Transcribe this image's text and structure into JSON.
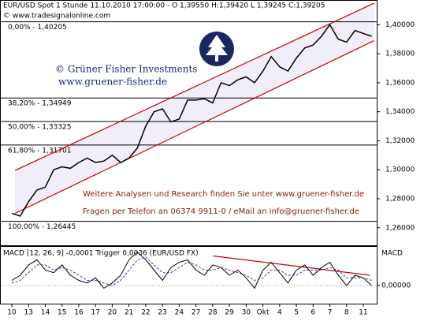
{
  "chart_data": [
    {
      "type": "line",
      "title": "EUR/USD Spot 1 Stunde  11.10.2010 17:00:00 - O 1,39550 H:1,39420 L 1,39245 C:1,39205",
      "subtitle": "© www.tradesignalonline.com",
      "annotations": [
        "© Grüner Fisher Investments",
        "www.gruener-fisher.de",
        "Weitere Analysen und Research finden Sie unter www.gruener-fisher.de",
        "Fragen per Telefon an 06374 9911-0 / eMail an info@gruener-fisher.de"
      ],
      "x": [
        0,
        0.5,
        1,
        1.5,
        2,
        2.5,
        3,
        3.5,
        4,
        4.5,
        5,
        5.5,
        6,
        6.5,
        7,
        7.5,
        8,
        8.5,
        9,
        9.5,
        10,
        10.5,
        11,
        11.5,
        12,
        12.5,
        13,
        13.5,
        14,
        14.5,
        15,
        15.5,
        16,
        16.5,
        17,
        17.5,
        18,
        18.5,
        19,
        19.5,
        20,
        20.5,
        21,
        21.5
      ],
      "values": [
        1.27,
        1.268,
        1.278,
        1.286,
        1.288,
        1.3,
        1.302,
        1.301,
        1.305,
        1.308,
        1.305,
        1.306,
        1.31,
        1.305,
        1.308,
        1.315,
        1.33,
        1.34,
        1.342,
        1.333,
        1.335,
        1.348,
        1.348,
        1.349,
        1.346,
        1.36,
        1.358,
        1.362,
        1.364,
        1.36,
        1.368,
        1.378,
        1.371,
        1.368,
        1.377,
        1.384,
        1.386,
        1.392,
        1.4,
        1.39,
        1.388,
        1.396,
        1.394,
        1.392
      ],
      "color": "#000000",
      "xlim": [
        -0.66,
        21.8
      ],
      "xticks": [
        {
          "value": 0,
          "label": "10"
        },
        {
          "value": 1,
          "label": "13"
        },
        {
          "value": 2,
          "label": "14"
        },
        {
          "value": 3,
          "label": "15"
        },
        {
          "value": 4,
          "label": "16"
        },
        {
          "value": 5,
          "label": "17"
        },
        {
          "value": 6,
          "label": "20"
        },
        {
          "value": 7,
          "label": "21"
        },
        {
          "value": 8,
          "label": "22"
        },
        {
          "value": 9,
          "label": "23"
        },
        {
          "value": 10,
          "label": "24"
        },
        {
          "value": 11,
          "label": "27"
        },
        {
          "value": 12,
          "label": "28"
        },
        {
          "value": 13,
          "label": "29"
        },
        {
          "value": 14,
          "label": "30"
        },
        {
          "value": 15,
          "label": "Okt"
        },
        {
          "value": 16,
          "label": "4"
        },
        {
          "value": 17,
          "label": "5"
        },
        {
          "value": 18,
          "label": "6"
        },
        {
          "value": 19,
          "label": "7"
        },
        {
          "value": 20,
          "label": "8"
        },
        {
          "value": 21,
          "label": "11"
        }
      ],
      "ylim": [
        1.2479,
        1.4165
      ],
      "yticks": [
        {
          "value": 1.26,
          "label": "1,26000"
        },
        {
          "value": 1.28,
          "label": "1,28000"
        },
        {
          "value": 1.3,
          "label": "1,30000"
        },
        {
          "value": 1.32,
          "label": "1,32000"
        },
        {
          "value": 1.34,
          "label": "1,34000"
        },
        {
          "value": 1.36,
          "label": "1,36000"
        },
        {
          "value": 1.38,
          "label": "1,38000"
        },
        {
          "value": 1.4,
          "label": "1,40000"
        }
      ],
      "fib_levels": [
        {
          "value": 1.40205,
          "label": "0,00% - 1,40205"
        },
        {
          "value": 1.34949,
          "label": "38,20% - 1,34949"
        },
        {
          "value": 1.33325,
          "label": "50,00% - 1,33325"
        },
        {
          "value": 1.31701,
          "label": "61,80% - 1,31701"
        },
        {
          "value": 1.26445,
          "label": "100,00% - 1,26445"
        }
      ],
      "channel": {
        "color": "#cc0000",
        "fill": "#f1edf9",
        "x": [
          0.19,
          21.64
        ],
        "upper": [
          1.2995,
          1.4148
        ],
        "lower": [
          1.2699,
          1.389
        ]
      }
    },
    {
      "type": "line",
      "title": "MACD [12, 26, 9] -0,0001 Trigger 0,0036 (EUR/USD FX)",
      "axis_label": "MACD",
      "x": [
        0,
        0.5,
        1,
        1.5,
        2,
        2.5,
        3,
        3.5,
        4,
        4.5,
        5,
        5.5,
        6,
        6.5,
        7,
        7.5,
        8,
        8.5,
        9,
        9.5,
        10,
        10.5,
        11,
        11.5,
        12,
        12.5,
        13,
        13.5,
        14,
        14.5,
        15,
        15.5,
        16,
        16.5,
        17,
        17.5,
        18,
        18.5,
        19,
        19.5,
        20,
        20.5,
        21,
        21.5
      ],
      "series": [
        {
          "color": "#000000",
          "values": [
            0.002,
            0.004,
            0.008,
            0.01,
            0.006,
            0.005,
            0.008,
            0.004,
            0.002,
            0.001,
            0.003,
            -0.001,
            0.001,
            0.004,
            0.01,
            0.013,
            0.01,
            0.006,
            0.002,
            0.007,
            0.009,
            0.01,
            0.006,
            0.004,
            0.008,
            0.007,
            0.004,
            0.006,
            0.003,
            -0.001,
            0.006,
            0.009,
            0.005,
            0.001,
            0.006,
            0.008,
            0.004,
            0.007,
            0.009,
            0.004,
            0.0,
            0.004,
            0.003,
            0.0
          ]
        },
        {
          "color": "#3a3aa0",
          "dashed": true,
          "values": [
            0.001,
            0.002,
            0.005,
            0.008,
            0.008,
            0.006,
            0.007,
            0.006,
            0.004,
            0.002,
            0.002,
            0.001,
            0.0,
            0.002,
            0.006,
            0.01,
            0.011,
            0.008,
            0.005,
            0.005,
            0.007,
            0.009,
            0.008,
            0.006,
            0.006,
            0.007,
            0.006,
            0.005,
            0.004,
            0.002,
            0.003,
            0.006,
            0.006,
            0.004,
            0.004,
            0.006,
            0.006,
            0.006,
            0.007,
            0.006,
            0.003,
            0.003,
            0.003,
            0.002
          ]
        }
      ],
      "trendline": {
        "color": "#cc0000",
        "x": [
          12.02,
          21.4
        ],
        "values": [
          0.0115,
          0.004
        ]
      },
      "xlim": [
        -0.66,
        21.8
      ],
      "ylim": [
        -0.007,
        0.015
      ],
      "yticks": [
        {
          "value": 0,
          "label": "0,00000"
        }
      ]
    }
  ]
}
